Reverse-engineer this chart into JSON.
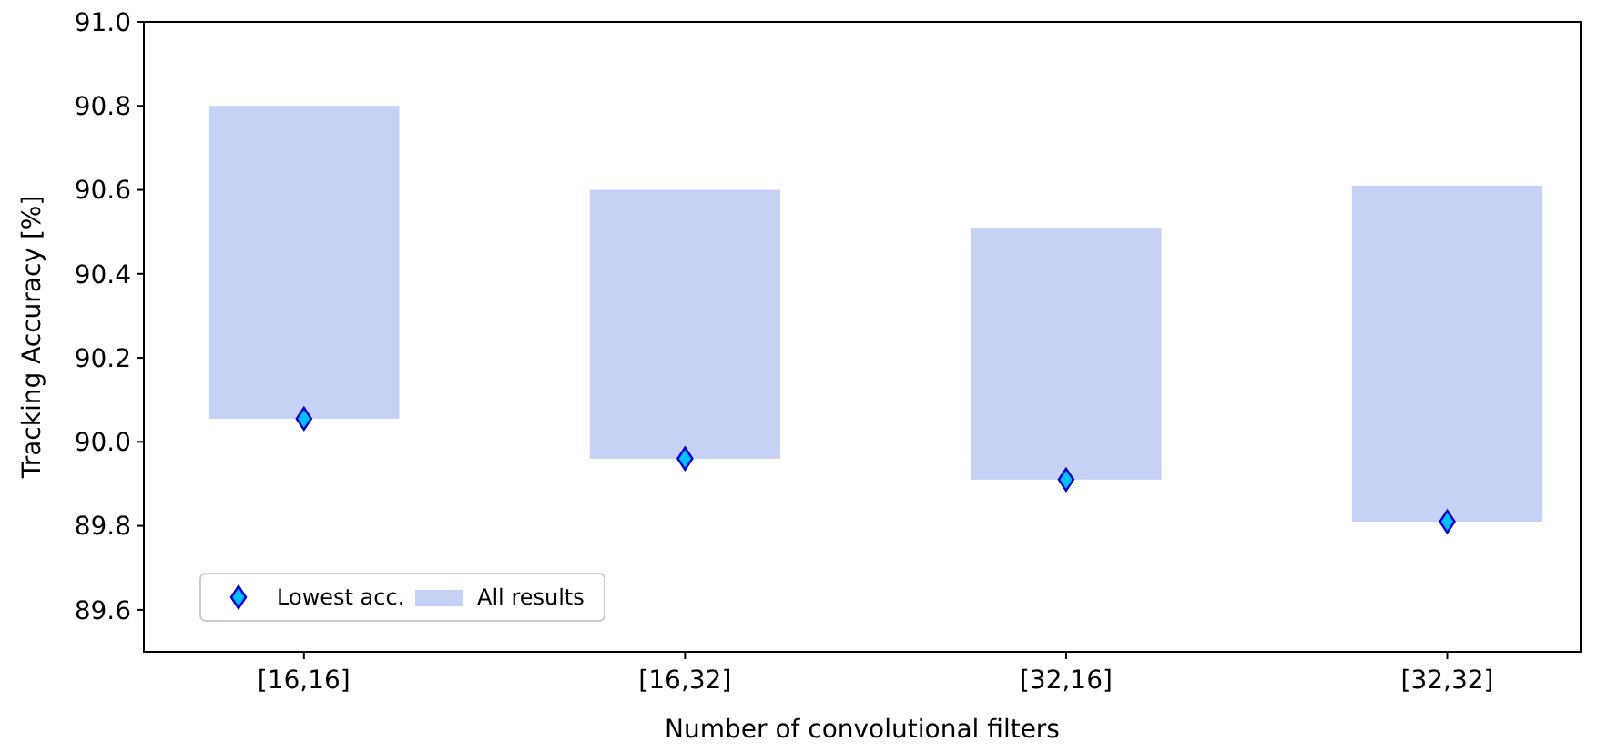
{
  "chart_data": {
    "type": "bar",
    "xlabel": "Number of convolutional filters",
    "ylabel": "Tracking Accuracy [%]",
    "categories": [
      "[16,16]",
      "[16,32]",
      "[32,16]",
      "[32,32]"
    ],
    "series": [
      {
        "name": "All results",
        "color": "#c6d2f5",
        "base": [
          90.055,
          89.96,
          89.91,
          89.81
        ],
        "values": [
          0.745,
          0.64,
          0.6,
          0.8
        ]
      },
      {
        "name": "Lowest acc.",
        "type": "scatter",
        "color": "#00bfff",
        "marker": "diamond",
        "x": [
          "[16,16]",
          "[16,32]",
          "[32,16]",
          "[32,32]"
        ],
        "values": [
          90.055,
          89.96,
          89.91,
          89.81
        ]
      }
    ],
    "ylim": [
      89.5,
      91.0
    ],
    "yticks": [
      {
        "value": 89.6,
        "label": "89.6"
      },
      {
        "value": 89.8,
        "label": "89.8"
      },
      {
        "value": 90.0,
        "label": "90.0"
      },
      {
        "value": 90.2,
        "label": "90.2"
      },
      {
        "value": 90.4,
        "label": "90.4"
      },
      {
        "value": 90.6,
        "label": "90.6"
      },
      {
        "value": 90.8,
        "label": "90.8"
      },
      {
        "value": 91.0,
        "label": "91.0"
      }
    ],
    "legend": "bottom left"
  }
}
